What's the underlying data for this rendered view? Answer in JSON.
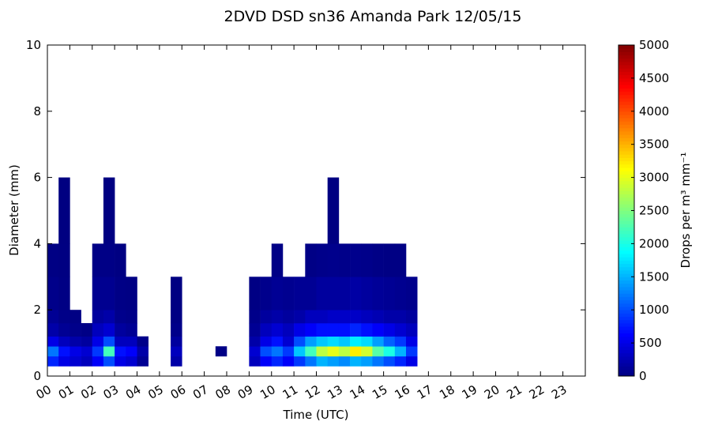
{
  "chart_data": {
    "type": "heatmap",
    "title": "2DVD DSD sn36 Amanda Park 12/05/15",
    "x_label": "Time (UTC)",
    "y_label": "Diameter (mm)",
    "colorbar_label": "Drops per m³  mm⁻¹",
    "xlim": [
      0,
      24
    ],
    "ylim": [
      0,
      10
    ],
    "clim": [
      0,
      5000
    ],
    "colormap": "jet",
    "xticks": [
      {
        "value": 0,
        "label": "00"
      },
      {
        "value": 1,
        "label": "01"
      },
      {
        "value": 2,
        "label": "02"
      },
      {
        "value": 3,
        "label": "03"
      },
      {
        "value": 4,
        "label": "04"
      },
      {
        "value": 5,
        "label": "05"
      },
      {
        "value": 6,
        "label": "06"
      },
      {
        "value": 7,
        "label": "07"
      },
      {
        "value": 8,
        "label": "08"
      },
      {
        "value": 9,
        "label": "09"
      },
      10,
      11,
      12,
      13,
      14,
      15,
      16,
      17,
      18,
      19,
      20,
      21,
      22,
      23
    ],
    "yticks": [
      0,
      2,
      4,
      6,
      8,
      10
    ],
    "cticks": [
      0,
      500,
      1000,
      1500,
      2000,
      2500,
      3000,
      3500,
      4000,
      4500,
      5000
    ],
    "x_bins": [
      0,
      0.5,
      1,
      1.5,
      2,
      2.5,
      3,
      3.5,
      4,
      4.5,
      5,
      5.5,
      6,
      6.5,
      7,
      7.5,
      8,
      8.5,
      9,
      9.5,
      10,
      10.5,
      11,
      11.5,
      12,
      12.5,
      13,
      13.5,
      14,
      14.5,
      15,
      15.5,
      16,
      16.5
    ],
    "y_bins": [
      0.3,
      0.6,
      0.9,
      1.2,
      1.6,
      2,
      3,
      4,
      6
    ],
    "z": [
      [
        800,
        1200,
        500,
        200,
        100,
        50,
        20,
        null
      ],
      [
        500,
        700,
        300,
        100,
        40,
        20,
        10,
        5
      ],
      [
        400,
        500,
        200,
        50,
        20,
        null,
        null,
        null
      ],
      [
        300,
        400,
        150,
        30,
        null,
        null,
        null,
        null
      ],
      [
        600,
        900,
        500,
        300,
        150,
        80,
        30,
        null
      ],
      [
        1000,
        2200,
        1000,
        400,
        200,
        80,
        30,
        10
      ],
      [
        500,
        700,
        300,
        150,
        60,
        30,
        10,
        null
      ],
      [
        400,
        600,
        300,
        100,
        40,
        20,
        null,
        null
      ],
      [
        100,
        200,
        50,
        null,
        null,
        null,
        null,
        null
      ],
      [
        null,
        null,
        null,
        null,
        null,
        null,
        null,
        null
      ],
      [
        null,
        null,
        null,
        null,
        null,
        null,
        null,
        null
      ],
      [
        200,
        300,
        150,
        50,
        20,
        10,
        null,
        null
      ],
      [
        null,
        null,
        null,
        null,
        null,
        null,
        null,
        null
      ],
      [
        null,
        null,
        null,
        null,
        null,
        null,
        null,
        null
      ],
      [
        null,
        null,
        null,
        null,
        null,
        null,
        null,
        null
      ],
      [
        null,
        30,
        null,
        null,
        null,
        null,
        null,
        null
      ],
      [
        null,
        null,
        null,
        null,
        null,
        null,
        null,
        null
      ],
      [
        null,
        null,
        null,
        null,
        null,
        null,
        null,
        null
      ],
      [
        300,
        400,
        200,
        100,
        50,
        20,
        null,
        null
      ],
      [
        600,
        1000,
        500,
        300,
        150,
        60,
        null,
        null
      ],
      [
        800,
        1200,
        700,
        400,
        200,
        100,
        30,
        null
      ],
      [
        600,
        900,
        400,
        300,
        150,
        80,
        null,
        null
      ],
      [
        900,
        1600,
        1000,
        500,
        200,
        100,
        null,
        null
      ],
      [
        1200,
        2200,
        1400,
        600,
        300,
        100,
        30,
        null
      ],
      [
        1500,
        2800,
        1600,
        700,
        300,
        150,
        50,
        null
      ],
      [
        1400,
        3000,
        1700,
        700,
        350,
        150,
        60,
        10
      ],
      [
        1300,
        2800,
        1600,
        700,
        350,
        150,
        50,
        null
      ],
      [
        1500,
        3200,
        1800,
        800,
        350,
        180,
        60,
        null
      ],
      [
        1400,
        2900,
        1700,
        700,
        300,
        150,
        50,
        null
      ],
      [
        1200,
        2300,
        1400,
        600,
        250,
        120,
        30,
        null
      ],
      [
        1000,
        2000,
        1100,
        500,
        200,
        100,
        20,
        null
      ],
      [
        800,
        1500,
        900,
        400,
        200,
        80,
        20,
        null
      ],
      [
        500,
        900,
        500,
        300,
        150,
        60,
        null,
        null
      ]
    ]
  }
}
